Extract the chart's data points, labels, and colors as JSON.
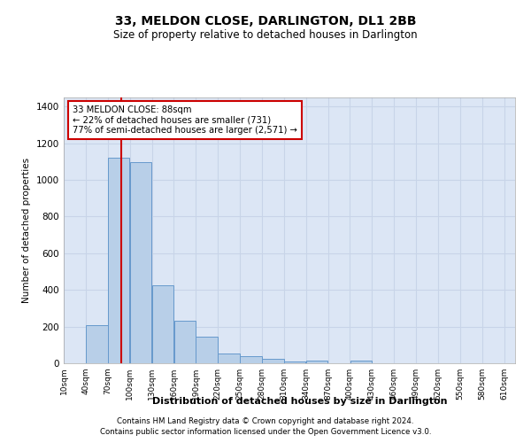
{
  "title": "33, MELDON CLOSE, DARLINGTON, DL1 2BB",
  "subtitle": "Size of property relative to detached houses in Darlington",
  "xlabel": "Distribution of detached houses by size in Darlington",
  "ylabel": "Number of detached properties",
  "bar_heights": [
    0,
    210,
    1120,
    1095,
    425,
    230,
    145,
    55,
    38,
    22,
    10,
    15,
    0,
    15,
    0,
    0,
    0,
    0,
    0,
    0,
    0
  ],
  "property_label": "33 MELDON CLOSE: 88sqm",
  "pct_smaller": "22% of detached houses are smaller (731)",
  "pct_larger": "77% of semi-detached houses are larger (2,571)",
  "vline_x": 88,
  "bar_color": "#b8cfe8",
  "bar_edge_color": "#6699cc",
  "vline_color": "#cc0000",
  "annotation_box_color": "#cc0000",
  "background_color": "#ffffff",
  "plot_bg_color": "#dce6f5",
  "grid_color": "#c8d4e8",
  "footer1": "Contains HM Land Registry data © Crown copyright and database right 2024.",
  "footer2": "Contains public sector information licensed under the Open Government Licence v3.0.",
  "ylim": [
    0,
    1450
  ],
  "bin_edges": [
    10,
    40,
    70,
    100,
    130,
    160,
    190,
    220,
    250,
    280,
    310,
    340,
    370,
    400,
    430,
    460,
    490,
    520,
    550,
    580,
    610
  ]
}
